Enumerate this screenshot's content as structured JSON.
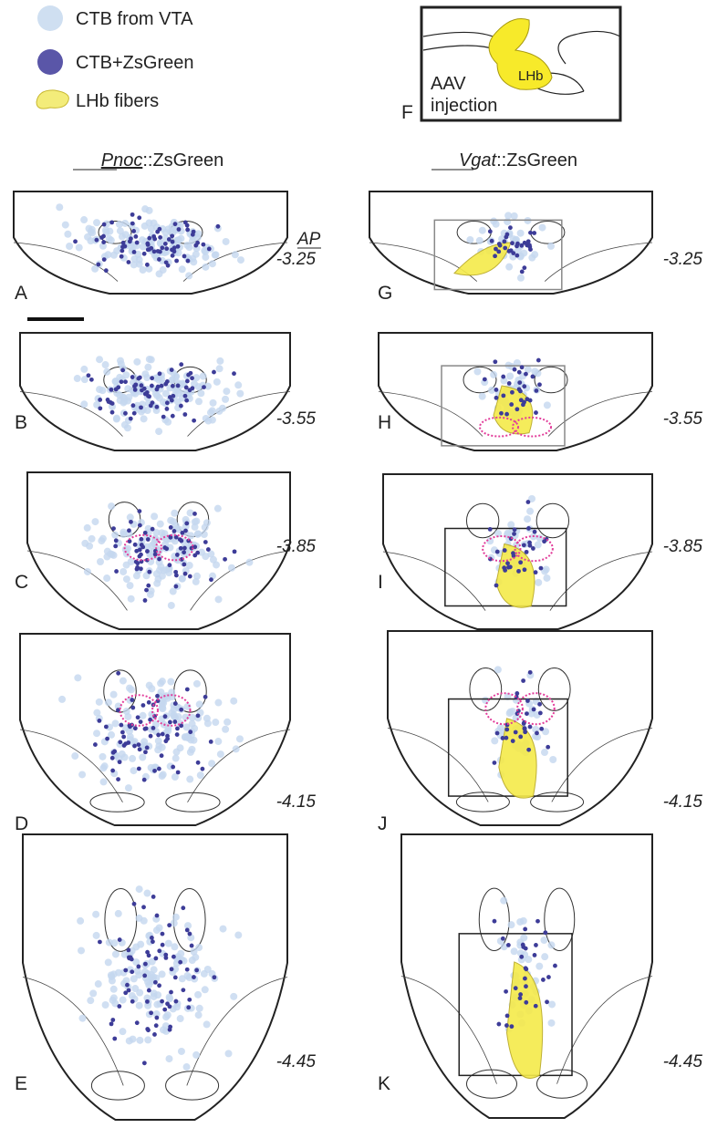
{
  "legend": [
    {
      "label": "CTB from VTA"
    },
    {
      "label": "CTB+ZsGreen"
    },
    {
      "label": "LHb fibers"
    }
  ],
  "inset": {
    "panel": "F",
    "region": "LHb",
    "lines": [
      "AAV",
      "injection"
    ]
  },
  "columns": [
    {
      "gene": "Pnoc",
      "suffix": "::ZsGreen"
    },
    {
      "gene": "Vgat",
      "suffix": "::ZsGreen"
    }
  ],
  "ap_label": "AP",
  "rows": [
    {
      "left": "A",
      "right": "G",
      "ap": "-3.25"
    },
    {
      "left": "B",
      "right": "H",
      "ap": "-3.55"
    },
    {
      "left": "C",
      "right": "I",
      "ap": "-3.85"
    },
    {
      "left": "D",
      "right": "J",
      "ap": "-4.15"
    },
    {
      "left": "E",
      "right": "K",
      "ap": "-4.45"
    }
  ]
}
